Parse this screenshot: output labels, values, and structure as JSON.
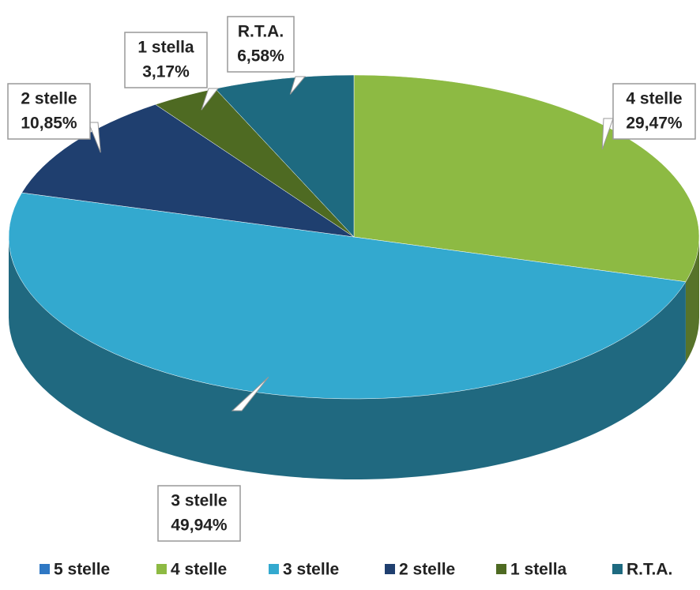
{
  "chart_data": {
    "type": "pie3d",
    "categories": [
      "5 stelle",
      "4 stelle",
      "3 stelle",
      "2 stelle",
      "1 stella",
      "R.T.A."
    ],
    "values": [
      0,
      29.47,
      49.94,
      10.85,
      3.17,
      6.58
    ],
    "value_labels": [
      null,
      "29,47%",
      "49,94%",
      "10,85%",
      "3,17%",
      "6,58%"
    ],
    "colors": [
      "#2f78c4",
      "#8dba43",
      "#33a9cf",
      "#1f3f6f",
      "#4e6a22",
      "#1e6a80"
    ],
    "legend": "bottom"
  }
}
